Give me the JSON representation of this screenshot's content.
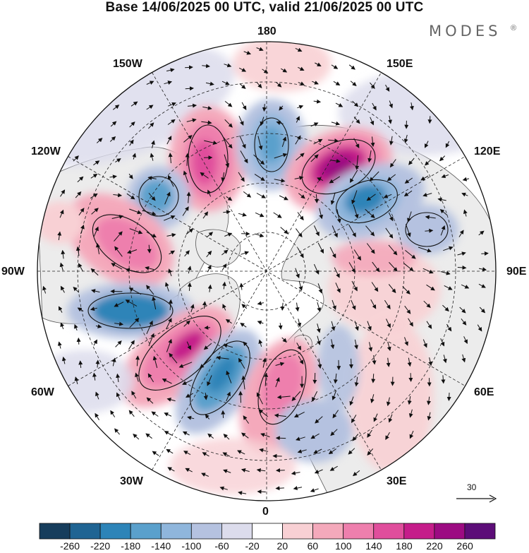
{
  "title": "Base 14/06/2025 00 UTC, valid 21/06/2025 00 UTC",
  "brand": {
    "name": "MODES",
    "mark": "®"
  },
  "longitude_labels": [
    "180",
    "150E",
    "120E",
    "90E",
    "60E",
    "30E",
    "0",
    "30W",
    "60W",
    "90W",
    "120W",
    "150W"
  ],
  "wind_reference": {
    "value": "30",
    "icon": "arrow-right-icon"
  },
  "colorbar": {
    "colors": [
      "#163d5c",
      "#1f6493",
      "#2d84b8",
      "#5aa0cc",
      "#8fb6dc",
      "#b5c2e0",
      "#dcdcec",
      "#ffffff",
      "#f8d0d4",
      "#f4a9bb",
      "#ee7fad",
      "#e04e9c",
      "#c51d8a",
      "#9c0b82",
      "#5c0d78"
    ],
    "tick_labels": [
      "-260",
      "-220",
      "-180",
      "-140",
      "-100",
      "-60",
      "-20",
      "20",
      "60",
      "100",
      "140",
      "180",
      "220",
      "260"
    ]
  },
  "colors": {
    "land": "#ececec",
    "ocean": "#ffffff",
    "coast": "#555555"
  }
}
